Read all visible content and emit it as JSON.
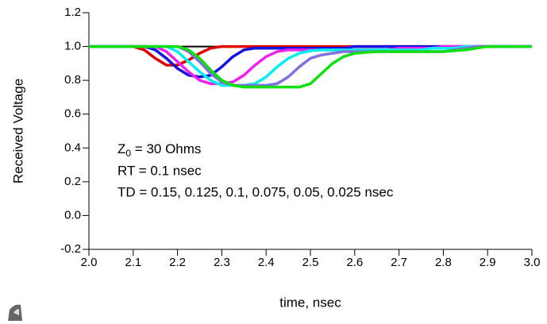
{
  "chart_data": {
    "type": "line",
    "x_label": "time, nsec",
    "y_label": "Received Voltage",
    "annotations": [
      "Z",
      "0",
      " = 30 Ohms",
      "RT = 0.1 nsec",
      "TD = 0.15, 0.125, 0.1, 0.075, 0.05, 0.025 nsec"
    ],
    "xlim": [
      2.0,
      3.0
    ],
    "ylim": [
      -0.2,
      1.2
    ],
    "xticks": [
      {
        "value": 2.0,
        "label": "2.0"
      },
      2.1,
      2.2,
      2.3,
      2.4,
      2.5,
      2.6,
      2.7,
      2.8,
      2.9,
      {
        "value": 3.0,
        "label": "3.0"
      }
    ],
    "yticks": [
      -0.2,
      {
        "value": 0.0,
        "label": "0.0"
      },
      0.2,
      0.4,
      0.6,
      0.8,
      {
        "value": 1.0,
        "label": "1.0"
      },
      1.2
    ],
    "x": [
      2,
      2.025,
      2.05,
      2.075,
      2.1,
      2.125,
      2.15,
      2.175,
      2.2,
      2.225,
      2.25,
      2.275,
      2.3,
      2.325,
      2.35,
      2.375,
      2.4,
      2.425,
      2.45,
      2.475,
      2.5,
      2.525,
      2.55,
      2.575,
      2.6,
      2.625,
      2.65,
      2.675,
      2.7,
      2.725,
      2.75,
      2.775,
      2.8,
      2.825,
      2.85,
      2.875,
      2.9,
      2.925,
      2.95,
      2.975,
      3
    ],
    "series": [
      {
        "color": "#000000",
        "values": [
          1,
          1,
          1,
          1,
          1,
          1,
          1,
          1,
          1,
          1,
          1,
          1,
          1,
          1,
          1,
          1,
          1,
          1,
          1,
          1,
          1,
          1,
          1,
          1,
          1,
          1,
          1,
          1,
          1,
          1,
          1,
          1,
          1,
          1,
          1,
          1,
          1,
          1,
          1,
          1,
          1
        ]
      },
      {
        "color": "#e00000",
        "values": [
          1,
          1,
          1,
          1,
          1,
          0.98,
          0.93,
          0.89,
          0.89,
          0.92,
          0.96,
          0.99,
          1,
          1,
          1,
          1,
          1,
          1,
          1,
          1,
          1,
          1,
          1,
          1,
          1,
          1,
          1,
          1,
          1,
          1,
          1,
          1,
          1,
          1,
          1,
          1,
          1,
          1,
          1,
          1,
          1
        ]
      },
      {
        "color": "#1414e0",
        "values": [
          1,
          1,
          1,
          1,
          1,
          1,
          0.98,
          0.93,
          0.87,
          0.83,
          0.82,
          0.83,
          0.88,
          0.94,
          0.98,
          0.99,
          0.99,
          0.99,
          0.99,
          0.99,
          0.99,
          0.99,
          0.99,
          0.99,
          1,
          1,
          1,
          1,
          1,
          1,
          1,
          1,
          1,
          1,
          1,
          1,
          1,
          1,
          1,
          1,
          1
        ]
      },
      {
        "color": "#f020f0",
        "values": [
          1,
          1,
          1,
          1,
          1,
          1,
          1,
          0.97,
          0.91,
          0.85,
          0.8,
          0.78,
          0.78,
          0.79,
          0.83,
          0.89,
          0.94,
          0.97,
          0.98,
          0.98,
          0.98,
          0.98,
          0.98,
          0.98,
          0.98,
          0.98,
          0.98,
          0.98,
          0.99,
          0.99,
          0.99,
          0.99,
          1,
          1,
          1,
          1,
          1,
          1,
          1,
          1,
          1
        ]
      },
      {
        "color": "#00f0f0",
        "values": [
          1,
          1,
          1,
          1,
          1,
          1,
          1,
          1,
          0.97,
          0.91,
          0.85,
          0.8,
          0.77,
          0.77,
          0.77,
          0.78,
          0.82,
          0.88,
          0.93,
          0.96,
          0.975,
          0.98,
          0.98,
          0.98,
          0.98,
          0.98,
          0.98,
          0.98,
          0.98,
          0.98,
          0.98,
          0.99,
          0.99,
          0.99,
          1,
          1,
          1,
          1,
          1,
          1,
          1
        ]
      },
      {
        "color": "#8070e0",
        "values": [
          1,
          1,
          1,
          1,
          1,
          1,
          1,
          1,
          1,
          0.97,
          0.91,
          0.84,
          0.79,
          0.77,
          0.77,
          0.77,
          0.77,
          0.78,
          0.82,
          0.88,
          0.93,
          0.95,
          0.96,
          0.97,
          0.97,
          0.97,
          0.97,
          0.97,
          0.97,
          0.97,
          0.97,
          0.97,
          0.97,
          0.98,
          0.99,
          1,
          1,
          1,
          1,
          1,
          1
        ]
      },
      {
        "color": "#10e010",
        "values": [
          1,
          1,
          1,
          1,
          1,
          1,
          1,
          1,
          1,
          0.98,
          0.93,
          0.86,
          0.8,
          0.77,
          0.76,
          0.76,
          0.76,
          0.76,
          0.76,
          0.76,
          0.78,
          0.84,
          0.9,
          0.94,
          0.96,
          0.965,
          0.97,
          0.97,
          0.97,
          0.97,
          0.97,
          0.97,
          0.97,
          0.975,
          0.98,
          0.99,
          1,
          1,
          1,
          1,
          1
        ]
      }
    ]
  }
}
